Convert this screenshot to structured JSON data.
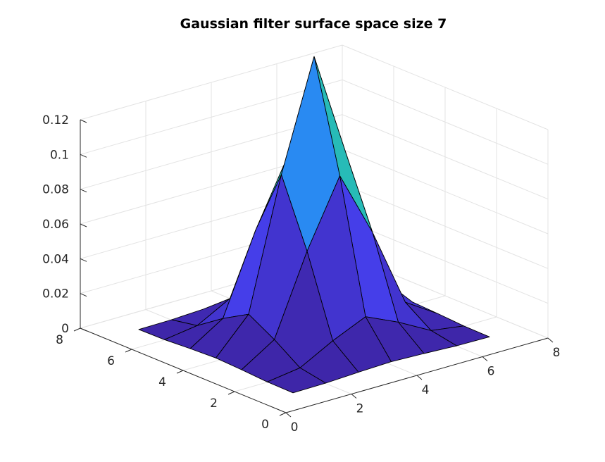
{
  "chart_data": {
    "type": "surface",
    "title": "Gaussian filter surface space size 7",
    "xlabel": "",
    "ylabel": "",
    "zlabel": "",
    "x": [
      1,
      2,
      3,
      4,
      5,
      6,
      7
    ],
    "y": [
      1,
      2,
      3,
      4,
      5,
      6,
      7
    ],
    "z": [
      [
        0.0,
        0.0002,
        0.0011,
        0.0018,
        0.0011,
        0.0002,
        0.0
      ],
      [
        0.0002,
        0.0029,
        0.0131,
        0.0216,
        0.0131,
        0.0029,
        0.0002
      ],
      [
        0.0011,
        0.0131,
        0.0586,
        0.0966,
        0.0586,
        0.0131,
        0.0011
      ],
      [
        0.0018,
        0.0216,
        0.0966,
        0.1592,
        0.0966,
        0.0216,
        0.0018
      ],
      [
        0.0011,
        0.0131,
        0.0586,
        0.0966,
        0.0586,
        0.0131,
        0.0011
      ],
      [
        0.0002,
        0.0029,
        0.0131,
        0.0216,
        0.0131,
        0.0029,
        0.0002
      ],
      [
        0.0,
        0.0002,
        0.0011,
        0.0018,
        0.0011,
        0.0002,
        0.0
      ]
    ],
    "xlim": [
      0,
      8
    ],
    "ylim": [
      0,
      8
    ],
    "zlim": [
      0,
      0.12
    ],
    "x_ticks": [
      "0",
      "2",
      "4",
      "6",
      "8"
    ],
    "y_ticks": [
      "0",
      "2",
      "4",
      "6",
      "8"
    ],
    "z_ticks": [
      "0",
      "0.02",
      "0.04",
      "0.06",
      "0.08",
      "0.1",
      "0.12"
    ],
    "grid": true,
    "colormap": "parula",
    "colormap_stops": [
      "#3e26a8",
      "#4743f8",
      "#2f80fa",
      "#12b1d6",
      "#32c1a6",
      "#91cb52",
      "#f4e42b"
    ]
  }
}
